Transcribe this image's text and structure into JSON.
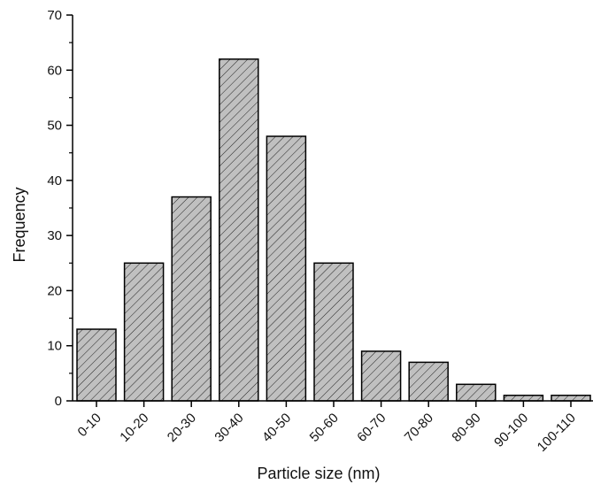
{
  "chart_data": {
    "type": "bar",
    "categories": [
      "0-10",
      "10-20",
      "20-30",
      "30-40",
      "40-50",
      "50-60",
      "60-70",
      "70-80",
      "80-90",
      "90-100",
      "100-110"
    ],
    "values": [
      13,
      25,
      37,
      62,
      48,
      25,
      9,
      7,
      3,
      1,
      1
    ],
    "title": "",
    "xlabel": "Particle size (nm)",
    "ylabel": "Frequency",
    "ylim": [
      0,
      70
    ],
    "yticks": [
      0,
      10,
      20,
      30,
      40,
      50,
      60,
      70
    ],
    "grid": false,
    "bar_fill": "#c0c0c0",
    "bar_pattern": "diagonal-hatch",
    "bar_stroke": "#000000"
  }
}
